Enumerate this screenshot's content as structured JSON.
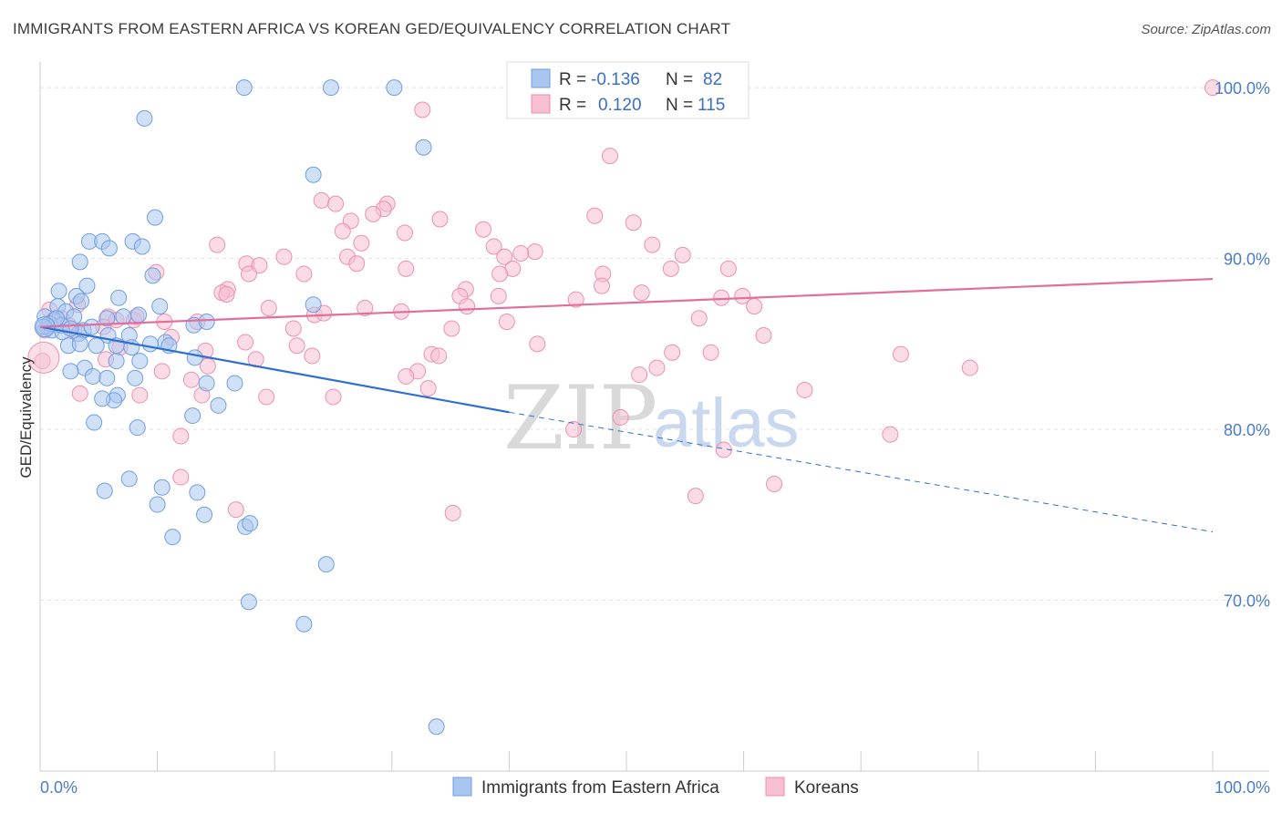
{
  "title": "IMMIGRANTS FROM EASTERN AFRICA VS KOREAN GED/EQUIVALENCY CORRELATION CHART",
  "source": "Source: ZipAtlas.com",
  "watermark": {
    "main": "ZIP",
    "sub": "atlas"
  },
  "colors": {
    "blue_fill": "#a9c6f0",
    "blue_stroke": "#6f9ee0",
    "blue_line": "#2f6fd0",
    "pink_fill": "#f7bfd2",
    "pink_stroke": "#ec8fb0",
    "pink_line": "#e0709b",
    "tick_text": "#4a7cc7",
    "grid": "#e2e2e2"
  },
  "legend": {
    "rows": [
      {
        "r_label": "R =",
        "r_value": "-0.136",
        "n_label": "N =",
        "n_value": "82"
      },
      {
        "r_label": "R =",
        "r_value": "0.120",
        "n_label": "N =",
        "n_value": "115"
      }
    ]
  },
  "chart_data": {
    "type": "scatter",
    "ylabel": "GED/Equivalency",
    "xlabel": "",
    "xlim": [
      0,
      100
    ],
    "ylim": [
      60,
      101.5
    ],
    "x_tick_labels": [
      "0.0%",
      "100.0%"
    ],
    "y_ticks": [
      {
        "value": 100,
        "label": "100.0%"
      },
      {
        "value": 90,
        "label": "90.0%"
      },
      {
        "value": 80,
        "label": "80.0%"
      },
      {
        "value": 70,
        "label": "70.0%"
      }
    ],
    "grid": true,
    "legend_position": "top-center",
    "series": [
      {
        "name": "Immigrants from Eastern Africa",
        "color": "blue",
        "trend": {
          "x": [
            0,
            40
          ],
          "y": [
            86.0,
            81.0
          ],
          "dashed_to": [
            100,
            74.0
          ]
        },
        "points": [
          [
            17.4,
            100
          ],
          [
            24.8,
            100
          ],
          [
            30.2,
            100
          ],
          [
            8.9,
            98.2
          ],
          [
            32.7,
            96.5
          ],
          [
            23.3,
            94.9
          ],
          [
            9.8,
            92.4
          ],
          [
            4.2,
            91.0
          ],
          [
            5.3,
            91.0
          ],
          [
            5.9,
            90.6
          ],
          [
            7.9,
            91.0
          ],
          [
            8.7,
            90.7
          ],
          [
            3.4,
            89.8
          ],
          [
            9.6,
            89.0
          ],
          [
            1.6,
            88.1
          ],
          [
            4.0,
            88.4
          ],
          [
            6.7,
            87.7
          ],
          [
            3.1,
            87.8
          ],
          [
            3.5,
            87.5
          ],
          [
            1.5,
            87.2
          ],
          [
            2.2,
            86.9
          ],
          [
            10.2,
            87.2
          ],
          [
            23.3,
            87.3
          ],
          [
            0.4,
            86.6
          ],
          [
            1.2,
            86.4
          ],
          [
            2.9,
            86.6
          ],
          [
            5.7,
            86.5
          ],
          [
            7.1,
            86.6
          ],
          [
            8.4,
            86.7
          ],
          [
            13.1,
            86.1
          ],
          [
            14.2,
            86.3
          ],
          [
            0.6,
            86.0
          ],
          [
            1.0,
            85.8
          ],
          [
            1.9,
            85.7
          ],
          [
            3.3,
            85.6
          ],
          [
            3.7,
            85.8
          ],
          [
            5.8,
            85.5
          ],
          [
            7.6,
            85.5
          ],
          [
            2.4,
            84.9
          ],
          [
            4.8,
            84.9
          ],
          [
            9.4,
            85.0
          ],
          [
            10.7,
            85.1
          ],
          [
            3.4,
            85.0
          ],
          [
            6.5,
            84.9
          ],
          [
            7.8,
            84.8
          ],
          [
            13.2,
            84.2
          ],
          [
            6.5,
            84.0
          ],
          [
            8.5,
            84.0
          ],
          [
            3.8,
            83.6
          ],
          [
            2.6,
            83.4
          ],
          [
            4.5,
            83.1
          ],
          [
            5.7,
            83.0
          ],
          [
            8.1,
            83.0
          ],
          [
            14.2,
            82.7
          ],
          [
            16.6,
            82.7
          ],
          [
            6.6,
            82.0
          ],
          [
            6.3,
            81.7
          ],
          [
            5.3,
            81.8
          ],
          [
            15.2,
            81.4
          ],
          [
            13.0,
            80.8
          ],
          [
            4.6,
            80.4
          ],
          [
            8.3,
            80.1
          ],
          [
            7.6,
            77.1
          ],
          [
            10.4,
            76.6
          ],
          [
            5.5,
            76.4
          ],
          [
            13.4,
            76.3
          ],
          [
            10.0,
            75.6
          ],
          [
            14.0,
            75.0
          ],
          [
            17.5,
            74.3
          ],
          [
            17.9,
            74.5
          ],
          [
            11.3,
            73.7
          ],
          [
            24.4,
            72.1
          ],
          [
            17.8,
            69.9
          ],
          [
            22.5,
            68.6
          ],
          [
            33.8,
            62.6
          ],
          [
            0.8,
            86.2
          ],
          [
            1.8,
            86.1
          ],
          [
            2.6,
            85.9
          ],
          [
            0.3,
            86.0
          ],
          [
            1.4,
            86.5
          ],
          [
            4.4,
            86.0
          ],
          [
            11.0,
            84.9
          ]
        ]
      },
      {
        "name": "Koreans",
        "color": "pink",
        "trend": {
          "x": [
            0,
            100
          ],
          "y": [
            86.0,
            88.8
          ]
        },
        "points": [
          [
            100,
            100
          ],
          [
            32.6,
            98.7
          ],
          [
            48.6,
            96.0
          ],
          [
            24.0,
            93.4
          ],
          [
            25.2,
            93.2
          ],
          [
            29.6,
            93.2
          ],
          [
            29.3,
            92.9
          ],
          [
            28.4,
            92.6
          ],
          [
            34.1,
            92.3
          ],
          [
            47.3,
            92.5
          ],
          [
            50.6,
            92.1
          ],
          [
            26.5,
            92.2
          ],
          [
            25.8,
            91.6
          ],
          [
            31.1,
            91.5
          ],
          [
            37.8,
            91.7
          ],
          [
            15.1,
            90.8
          ],
          [
            27.4,
            90.9
          ],
          [
            38.7,
            90.7
          ],
          [
            52.2,
            90.8
          ],
          [
            42.2,
            90.4
          ],
          [
            41.0,
            90.3
          ],
          [
            20.8,
            90.1
          ],
          [
            26.2,
            90.1
          ],
          [
            39.6,
            90.1
          ],
          [
            54.8,
            90.2
          ],
          [
            17.6,
            89.7
          ],
          [
            18.7,
            89.6
          ],
          [
            27.0,
            89.7
          ],
          [
            31.2,
            89.4
          ],
          [
            53.8,
            89.4
          ],
          [
            58.7,
            89.4
          ],
          [
            40.3,
            89.4
          ],
          [
            17.8,
            89.1
          ],
          [
            22.5,
            89.1
          ],
          [
            9.9,
            89.2
          ],
          [
            39.2,
            89.1
          ],
          [
            48.0,
            89.1
          ],
          [
            47.9,
            88.4
          ],
          [
            16.0,
            88.2
          ],
          [
            15.5,
            88.0
          ],
          [
            15.9,
            87.9
          ],
          [
            36.3,
            88.2
          ],
          [
            39.1,
            87.8
          ],
          [
            35.8,
            87.8
          ],
          [
            51.3,
            88.0
          ],
          [
            58.1,
            87.7
          ],
          [
            59.9,
            87.8
          ],
          [
            45.7,
            87.6
          ],
          [
            60.9,
            87.2
          ],
          [
            19.5,
            87.1
          ],
          [
            27.7,
            87.1
          ],
          [
            36.4,
            87.2
          ],
          [
            3.2,
            87.3
          ],
          [
            0.8,
            87.0
          ],
          [
            23.4,
            86.7
          ],
          [
            24.2,
            86.8
          ],
          [
            30.8,
            86.9
          ],
          [
            56.2,
            86.5
          ],
          [
            1.8,
            86.5
          ],
          [
            5.8,
            86.6
          ],
          [
            6.5,
            86.4
          ],
          [
            8.0,
            86.4
          ],
          [
            8.2,
            86.6
          ],
          [
            13.4,
            86.3
          ],
          [
            39.8,
            86.3
          ],
          [
            21.6,
            85.9
          ],
          [
            35.1,
            85.9
          ],
          [
            0.4,
            85.8
          ],
          [
            2.9,
            85.8
          ],
          [
            5.4,
            86.0
          ],
          [
            61.7,
            85.5
          ],
          [
            11.2,
            85.4
          ],
          [
            17.5,
            85.1
          ],
          [
            42.4,
            85.0
          ],
          [
            21.9,
            84.9
          ],
          [
            6.8,
            84.8
          ],
          [
            33.4,
            84.4
          ],
          [
            34.0,
            84.3
          ],
          [
            23.2,
            84.3
          ],
          [
            14.1,
            84.6
          ],
          [
            53.9,
            84.5
          ],
          [
            57.2,
            84.5
          ],
          [
            73.4,
            84.4
          ],
          [
            5.6,
            84.1
          ],
          [
            18.4,
            84.1
          ],
          [
            14.3,
            83.7
          ],
          [
            79.3,
            83.6
          ],
          [
            52.6,
            83.6
          ],
          [
            51.1,
            83.2
          ],
          [
            10.4,
            83.4
          ],
          [
            32.2,
            83.4
          ],
          [
            31.2,
            83.1
          ],
          [
            12.9,
            82.9
          ],
          [
            33.1,
            82.4
          ],
          [
            65.2,
            82.3
          ],
          [
            3.4,
            82.1
          ],
          [
            8.5,
            82.0
          ],
          [
            13.8,
            82.0
          ],
          [
            19.3,
            81.9
          ],
          [
            25.0,
            81.9
          ],
          [
            49.5,
            80.7
          ],
          [
            45.5,
            80.0
          ],
          [
            72.5,
            79.7
          ],
          [
            12.0,
            79.6
          ],
          [
            58.3,
            78.8
          ],
          [
            12.0,
            77.2
          ],
          [
            62.6,
            76.8
          ],
          [
            55.9,
            76.1
          ],
          [
            16.7,
            75.3
          ],
          [
            35.2,
            75.1
          ],
          [
            0.2,
            84.0
          ],
          [
            1.1,
            86.3
          ],
          [
            2.4,
            86.1
          ],
          [
            10.6,
            86.3
          ],
          [
            40.5,
            100
          ]
        ]
      }
    ]
  }
}
